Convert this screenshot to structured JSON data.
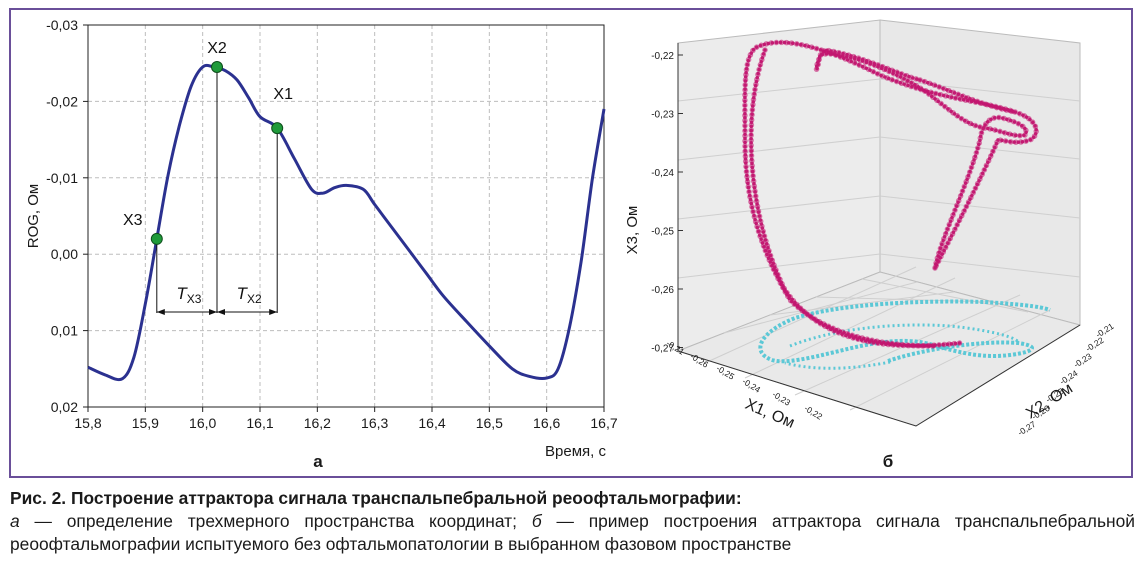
{
  "figure": {
    "panel_a": {
      "letter": "а",
      "y_axis_label": "ROG, Ом",
      "x_axis_label": "Время, с",
      "points": [
        "X1",
        "X2",
        "X3"
      ],
      "interval_labels": [
        {
          "main": "T",
          "sub": "X3"
        },
        {
          "main": "T",
          "sub": "X2"
        }
      ]
    },
    "panel_b": {
      "letter": "б",
      "x1_label": "X1, Ом",
      "x2_label": "X2, Ом",
      "x3_label": "X3, Ом",
      "x3_ticks": [
        "-0,22",
        "-0,23",
        "-0,24",
        "-0,25",
        "-0,26",
        "-0,27"
      ],
      "x1_ticks": [
        "-0,21",
        "-0,26",
        "-0,25",
        "-0,24",
        "-0,23",
        "-0,22"
      ],
      "x2_ticks": [
        "-0,21",
        "-0,22",
        "-0,23",
        "-0,24",
        "-0,25",
        "-0,26",
        "-0,27"
      ],
      "colors": {
        "attractor": "#c2166f",
        "projection": "#5cc8d6"
      }
    },
    "frame_color": "#6a4f99"
  },
  "chart_data": {
    "type": "line",
    "xlabel": "Время, с",
    "ylabel": "ROG, Ом",
    "xlim": [
      15.8,
      16.7
    ],
    "ylim": [
      0.02,
      -0.03
    ],
    "x_ticks": [
      "15,8",
      "15,9",
      "16,0",
      "16,1",
      "16,2",
      "16,3",
      "16,4",
      "16,5",
      "16,6",
      "16,7"
    ],
    "y_ticks": [
      "-0,03",
      "-0,02",
      "-0,01",
      "0,00",
      "0,01",
      "0,02"
    ],
    "grid": true,
    "color": "#2b3190",
    "series": [
      {
        "x": [
          15.8,
          15.83,
          15.86,
          15.88,
          15.9,
          15.92,
          15.94,
          15.96,
          15.98,
          16.0,
          16.02,
          16.04,
          16.06,
          16.08,
          16.1,
          16.13,
          16.16,
          16.19,
          16.21,
          16.23,
          16.25,
          16.28,
          16.3,
          16.33,
          16.36,
          16.39,
          16.42,
          16.46,
          16.5,
          16.54,
          16.57,
          16.6,
          16.62,
          16.64,
          16.66,
          16.68,
          16.7
        ],
        "y": [
          0.0148,
          0.0158,
          0.0163,
          0.0135,
          0.0065,
          -0.002,
          -0.0105,
          -0.017,
          -0.022,
          -0.0245,
          -0.0245,
          -0.024,
          -0.0228,
          -0.0205,
          -0.018,
          -0.0165,
          -0.0125,
          -0.0085,
          -0.008,
          -0.0087,
          -0.009,
          -0.0085,
          -0.0065,
          -0.0035,
          -0.0005,
          0.0025,
          0.0055,
          0.0088,
          0.012,
          0.015,
          0.016,
          0.0162,
          0.015,
          0.0095,
          0.001,
          -0.01,
          -0.019
        ]
      }
    ],
    "points": [
      {
        "label": "X3",
        "x": 15.92,
        "y": -0.002
      },
      {
        "label": "X2",
        "x": 16.025,
        "y": -0.0245
      },
      {
        "label": "X1",
        "x": 16.13,
        "y": -0.0165
      }
    ]
  },
  "caption": {
    "title": "Рис. 2. Построение аттрактора сигнала транспальпебральной реоофтальмографии:",
    "a_letter": "а",
    "a_text": " — определение трехмерного пространства координат; ",
    "b_letter": "б",
    "b_text": " — пример построения аттрактора сигнала транспальпебральной реоофтальмографии испытуемого без офтальмопатологии в выбранном фазовом пространстве"
  }
}
